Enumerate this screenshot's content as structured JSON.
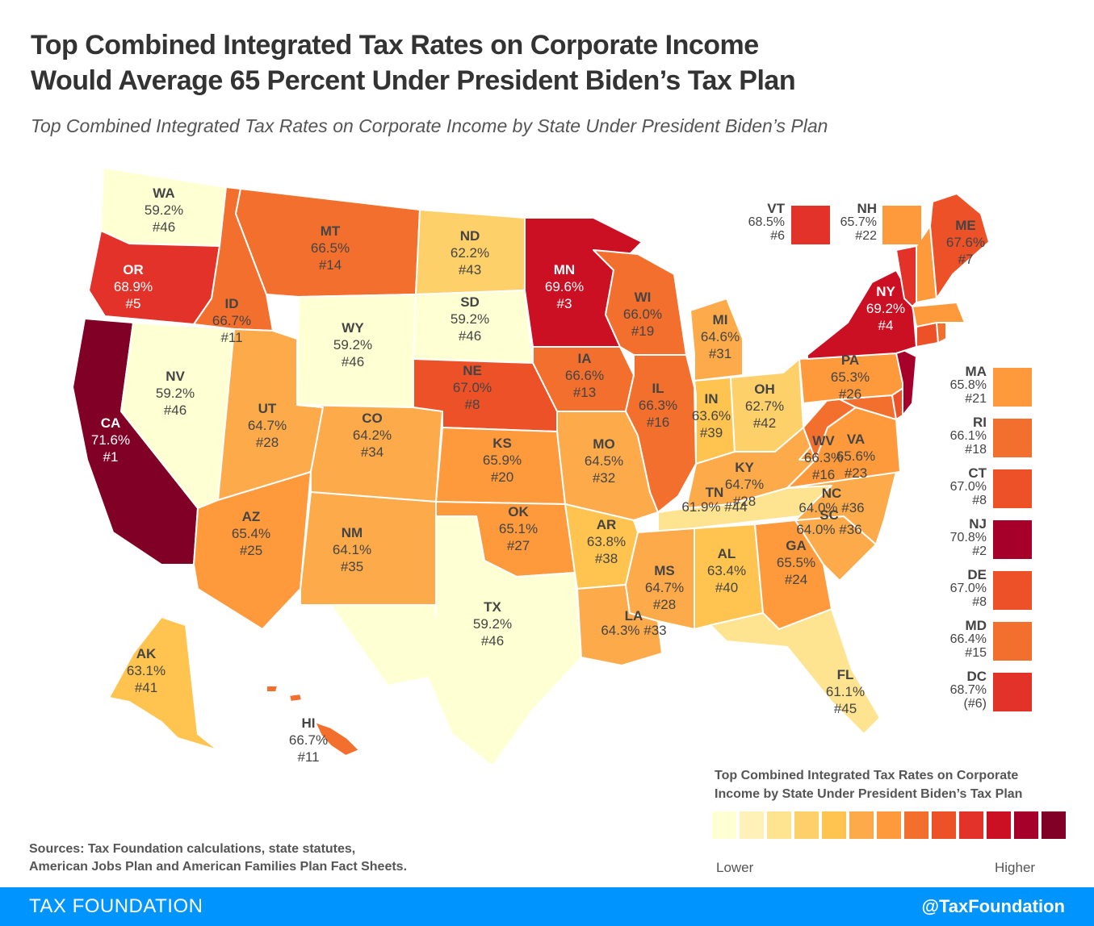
{
  "title_line1": "Top Combined Integrated Tax Rates on Corporate Income",
  "title_line2": "Would Average 65 Percent Under President Biden’s Tax Plan",
  "subtitle": "Top Combined Integrated Tax Rates on Corporate Income by State Under President Biden’s Plan",
  "palette": [
    "#ffffd4",
    "#fff1b8",
    "#fee391",
    "#fed06a",
    "#fec44f",
    "#fdab4a",
    "#fe9a3c",
    "#f36f2d",
    "#ec5128",
    "#e2322a",
    "#cb1024",
    "#a6002a",
    "#800026"
  ],
  "chart_data": {
    "type": "choropleth",
    "title": "Top Combined Integrated Tax Rates on Corporate Income by State Under President Biden’s Tax Plan",
    "value_unit": "%",
    "states": [
      {
        "abbr": "WA",
        "rate": "59.2%",
        "rank": "#46",
        "value": 59.2
      },
      {
        "abbr": "OR",
        "rate": "68.9%",
        "rank": "#5",
        "value": 68.9
      },
      {
        "abbr": "CA",
        "rate": "71.6%",
        "rank": "#1",
        "value": 71.6
      },
      {
        "abbr": "NV",
        "rate": "59.2%",
        "rank": "#46",
        "value": 59.2
      },
      {
        "abbr": "ID",
        "rate": "66.7%",
        "rank": "#11",
        "value": 66.7
      },
      {
        "abbr": "MT",
        "rate": "66.5%",
        "rank": "#14",
        "value": 66.5
      },
      {
        "abbr": "WY",
        "rate": "59.2%",
        "rank": "#46",
        "value": 59.2
      },
      {
        "abbr": "UT",
        "rate": "64.7%",
        "rank": "#28",
        "value": 64.7
      },
      {
        "abbr": "AZ",
        "rate": "65.4%",
        "rank": "#25",
        "value": 65.4
      },
      {
        "abbr": "CO",
        "rate": "64.2%",
        "rank": "#34",
        "value": 64.2
      },
      {
        "abbr": "NM",
        "rate": "64.1%",
        "rank": "#35",
        "value": 64.1
      },
      {
        "abbr": "ND",
        "rate": "62.2%",
        "rank": "#43",
        "value": 62.2
      },
      {
        "abbr": "SD",
        "rate": "59.2%",
        "rank": "#46",
        "value": 59.2
      },
      {
        "abbr": "NE",
        "rate": "67.0%",
        "rank": "#8",
        "value": 67.0
      },
      {
        "abbr": "KS",
        "rate": "65.9%",
        "rank": "#20",
        "value": 65.9
      },
      {
        "abbr": "OK",
        "rate": "65.1%",
        "rank": "#27",
        "value": 65.1
      },
      {
        "abbr": "TX",
        "rate": "59.2%",
        "rank": "#46",
        "value": 59.2
      },
      {
        "abbr": "MN",
        "rate": "69.6%",
        "rank": "#3",
        "value": 69.6
      },
      {
        "abbr": "IA",
        "rate": "66.6%",
        "rank": "#13",
        "value": 66.6
      },
      {
        "abbr": "MO",
        "rate": "64.5%",
        "rank": "#32",
        "value": 64.5
      },
      {
        "abbr": "AR",
        "rate": "63.8%",
        "rank": "#38",
        "value": 63.8
      },
      {
        "abbr": "LA",
        "rate": "64.3%",
        "rank": "#33",
        "value": 64.3
      },
      {
        "abbr": "WI",
        "rate": "66.0%",
        "rank": "#19",
        "value": 66.0
      },
      {
        "abbr": "IL",
        "rate": "66.3%",
        "rank": "#16",
        "value": 66.3
      },
      {
        "abbr": "MI",
        "rate": "64.6%",
        "rank": "#31",
        "value": 64.6
      },
      {
        "abbr": "IN",
        "rate": "63.6%",
        "rank": "#39",
        "value": 63.6
      },
      {
        "abbr": "OH",
        "rate": "62.7%",
        "rank": "#42",
        "value": 62.7
      },
      {
        "abbr": "KY",
        "rate": "64.7%",
        "rank": "#28",
        "value": 64.7
      },
      {
        "abbr": "TN",
        "rate": "61.9%",
        "rank": "#44",
        "value": 61.9
      },
      {
        "abbr": "MS",
        "rate": "64.7%",
        "rank": "#28",
        "value": 64.7
      },
      {
        "abbr": "AL",
        "rate": "63.4%",
        "rank": "#40",
        "value": 63.4
      },
      {
        "abbr": "GA",
        "rate": "65.5%",
        "rank": "#24",
        "value": 65.5
      },
      {
        "abbr": "FL",
        "rate": "61.1%",
        "rank": "#45",
        "value": 61.1
      },
      {
        "abbr": "SC",
        "rate": "64.0%",
        "rank": "#36",
        "value": 64.0
      },
      {
        "abbr": "NC",
        "rate": "64.0%",
        "rank": "#36",
        "value": 64.0
      },
      {
        "abbr": "VA",
        "rate": "65.6%",
        "rank": "#23",
        "value": 65.6
      },
      {
        "abbr": "WV",
        "rate": "66.3%",
        "rank": "#16",
        "value": 66.3
      },
      {
        "abbr": "PA",
        "rate": "65.3%",
        "rank": "#26",
        "value": 65.3
      },
      {
        "abbr": "NY",
        "rate": "69.2%",
        "rank": "#4",
        "value": 69.2
      },
      {
        "abbr": "ME",
        "rate": "67.6%",
        "rank": "#7",
        "value": 67.6
      },
      {
        "abbr": "AK",
        "rate": "63.1%",
        "rank": "#41",
        "value": 63.1
      },
      {
        "abbr": "HI",
        "rate": "66.7%",
        "rank": "#11",
        "value": 66.7
      }
    ],
    "callouts_top": [
      {
        "abbr": "VT",
        "rate": "68.5%",
        "rank": "#6",
        "value": 68.5
      },
      {
        "abbr": "NH",
        "rate": "65.7%",
        "rank": "#22",
        "value": 65.7
      }
    ],
    "callouts_side": [
      {
        "abbr": "MA",
        "rate": "65.8%",
        "rank": "#21",
        "value": 65.8
      },
      {
        "abbr": "RI",
        "rate": "66.1%",
        "rank": "#18",
        "value": 66.1
      },
      {
        "abbr": "CT",
        "rate": "67.0%",
        "rank": "#8",
        "value": 67.0
      },
      {
        "abbr": "NJ",
        "rate": "70.8%",
        "rank": "#2",
        "value": 70.8
      },
      {
        "abbr": "DE",
        "rate": "67.0%",
        "rank": "#8",
        "value": 67.0
      },
      {
        "abbr": "MD",
        "rate": "66.4%",
        "rank": "#15",
        "value": 66.4
      },
      {
        "abbr": "DC",
        "rate": "68.7%",
        "rank": "(#6)",
        "value": 68.7
      }
    ]
  },
  "legend": {
    "title_line1": "Top Combined Integrated Tax Rates on Corporate",
    "title_line2": "Income by State Under President Biden’s Tax Plan",
    "low_label": "Lower",
    "high_label": "Higher",
    "swatches": [
      "#ffffd4",
      "#fff1b8",
      "#fee391",
      "#fed06a",
      "#fec44f",
      "#fdab4a",
      "#fe9a3c",
      "#f36f2d",
      "#ec5128",
      "#e2322a",
      "#cb1024",
      "#a6002a",
      "#800026"
    ]
  },
  "sources_line1": "Sources: Tax Foundation calculations, state statutes,",
  "sources_line2": "American Jobs Plan and American Families Plan Fact Sheets.",
  "footer": {
    "brand": "TAX FOUNDATION",
    "handle": "@TaxFoundation"
  }
}
